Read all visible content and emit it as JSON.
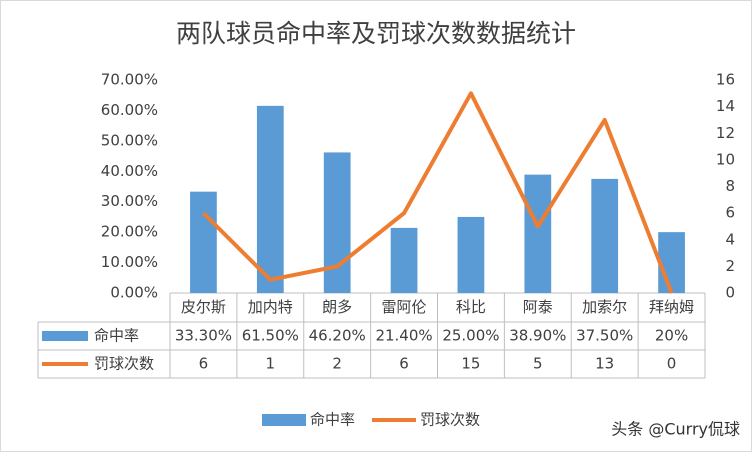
{
  "chart_data": {
    "type": "bar",
    "title": "两队球员命中率及罚球次数数据统计",
    "categories": [
      "皮尔斯",
      "加内特",
      "朗多",
      "雷阿伦",
      "科比",
      "阿泰",
      "加索尔",
      "拜纳姆"
    ],
    "series": [
      {
        "name": "命中率",
        "type": "bar",
        "color": "#5b9bd5",
        "values": [
          33.3,
          61.5,
          46.2,
          21.4,
          25.0,
          38.9,
          37.5,
          20
        ],
        "value_labels": [
          "33.30%",
          "61.50%",
          "46.20%",
          "21.40%",
          "25.00%",
          "38.90%",
          "37.50%",
          "20%"
        ]
      },
      {
        "name": "罚球次数",
        "type": "line",
        "axis": "y2",
        "color": "#ed7d31",
        "values": [
          6,
          1,
          2,
          6,
          15,
          5,
          13,
          0
        ]
      }
    ],
    "ylim": [
      0,
      70
    ],
    "yticks": [
      {
        "value": 0,
        "label": "0.00%"
      },
      {
        "value": 10,
        "label": "10.00%"
      },
      {
        "value": 20,
        "label": "20.00%"
      },
      {
        "value": 30,
        "label": "30.00%"
      },
      {
        "value": 40,
        "label": "40.00%"
      },
      {
        "value": 50,
        "label": "50.00%"
      },
      {
        "value": 60,
        "label": "60.00%"
      },
      {
        "value": 70,
        "label": "70.00%"
      }
    ],
    "y2lim": [
      0,
      16
    ],
    "y2ticks": [
      0,
      2,
      4,
      6,
      8,
      10,
      12,
      14,
      16
    ],
    "grid": false,
    "legend": "bottom",
    "data_table": true
  },
  "watermark": "头条 @Curry侃球"
}
